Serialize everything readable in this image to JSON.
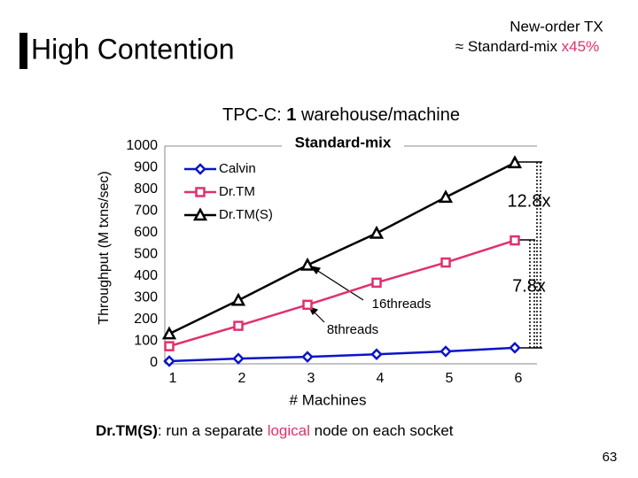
{
  "slide": {
    "title": "High Contention",
    "note_line1": "New-order TX",
    "note_line2": [
      "≈ Standard-mix ",
      "x45%"
    ],
    "subtitle": [
      "TPC-C: ",
      "1",
      " warehouse/machine"
    ],
    "footer": [
      "Dr.TM(S)",
      ": run a separate ",
      "logical",
      " node on each socket"
    ],
    "page_number": "63"
  },
  "chart_data": {
    "type": "line",
    "title": "Standard-mix",
    "x_label": "# Machines",
    "y_label": "Throughput (M txns/sec)",
    "categories": [
      "1",
      "2",
      "3",
      "4",
      "5",
      "6"
    ],
    "series": [
      {
        "name": "Calvin",
        "color": "#0a14c8",
        "marker": "diamond",
        "values": [
          8,
          20,
          28,
          40,
          53,
          70
        ]
      },
      {
        "name": "Dr.TM",
        "color": "#e0306f",
        "marker": "square",
        "values": [
          77,
          171,
          268,
          370,
          463,
          565
        ]
      },
      {
        "name": "Dr.TM(S)",
        "color": "#000000",
        "marker": "triangle",
        "values": [
          134,
          289,
          451,
          598,
          764,
          923
        ]
      }
    ],
    "ylim": [
      0,
      1000
    ],
    "yticks": [
      0,
      100,
      200,
      300,
      400,
      500,
      600,
      700,
      800,
      900,
      1000
    ],
    "grid": false,
    "legend": "upper-left",
    "annotations": [
      "12.8x",
      "7.8x",
      "16threads",
      "8threads"
    ]
  }
}
